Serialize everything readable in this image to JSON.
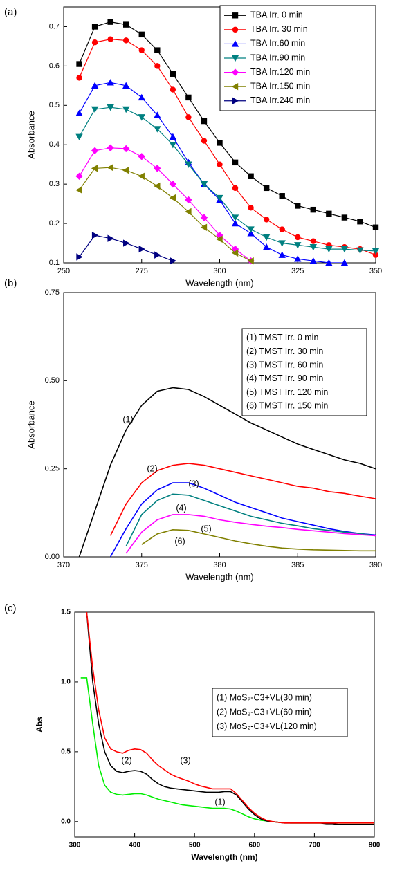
{
  "chart_data": [
    {
      "type": "line",
      "label": "(a)",
      "x_label": "Wavelength (nm)",
      "y_label": "Absorbance",
      "xlim": [
        250,
        350
      ],
      "xticks": [
        250,
        275,
        300,
        325,
        350
      ],
      "ylim": [
        0.1,
        0.75
      ],
      "yticks": [
        0.1,
        0.2,
        0.3,
        0.4,
        0.5,
        0.6,
        0.7
      ],
      "grid": false,
      "legend": "upper right",
      "x": [
        255,
        260,
        265,
        270,
        275,
        280,
        285,
        290,
        295,
        300,
        305,
        310,
        315,
        320,
        325,
        330,
        335,
        340,
        345,
        350
      ],
      "series": [
        {
          "name": "TBA Irr. 0 min",
          "color": "#000000",
          "marker": "square",
          "values": [
            0.605,
            0.7,
            0.712,
            0.705,
            0.68,
            0.64,
            0.58,
            0.52,
            0.46,
            0.405,
            0.355,
            0.32,
            0.29,
            0.27,
            0.245,
            0.235,
            0.225,
            0.215,
            0.205,
            0.19
          ]
        },
        {
          "name": "TBA Irr. 30 min",
          "color": "#ff0000",
          "marker": "circle",
          "values": [
            0.57,
            0.66,
            0.668,
            0.665,
            0.64,
            0.6,
            0.54,
            0.47,
            0.41,
            0.35,
            0.29,
            0.24,
            0.21,
            0.185,
            0.165,
            0.155,
            0.145,
            0.14,
            0.135,
            0.12
          ]
        },
        {
          "name": "TBA Irr.60 min",
          "color": "#0000ff",
          "marker": "triangle-up",
          "values": [
            0.48,
            0.55,
            0.558,
            0.55,
            0.52,
            0.475,
            0.42,
            0.355,
            0.3,
            0.26,
            0.2,
            0.175,
            0.14,
            0.12,
            0.11,
            0.105,
            0.1,
            0.1,
            null,
            null
          ]
        },
        {
          "name": "TBA Irr.90 min",
          "color": "#008080",
          "marker": "triangle-down",
          "values": [
            0.42,
            0.49,
            0.495,
            0.49,
            0.47,
            0.44,
            0.4,
            0.35,
            0.3,
            0.265,
            0.215,
            0.185,
            0.165,
            0.15,
            0.145,
            0.14,
            0.135,
            0.135,
            0.132,
            0.13
          ]
        },
        {
          "name": "TBA Irr.120 min",
          "color": "#ff00ff",
          "marker": "diamond",
          "values": [
            0.32,
            0.385,
            0.392,
            0.39,
            0.37,
            0.34,
            0.3,
            0.26,
            0.215,
            0.17,
            0.135,
            0.105,
            null,
            null,
            null,
            null,
            null,
            null,
            null,
            null
          ]
        },
        {
          "name": "TBA Irr.150 min",
          "color": "#808000",
          "marker": "triangle-left",
          "values": [
            0.285,
            0.34,
            0.342,
            0.335,
            0.32,
            0.295,
            0.265,
            0.23,
            0.19,
            0.16,
            0.125,
            0.105,
            null,
            null,
            null,
            null,
            null,
            null,
            null,
            null
          ]
        },
        {
          "name": "TBA Irr.240 min",
          "color": "#000080",
          "marker": "triangle-right",
          "values": [
            0.115,
            0.17,
            0.162,
            0.15,
            0.135,
            0.12,
            0.105,
            null,
            null,
            null,
            null,
            null,
            null,
            null,
            null,
            null,
            null,
            null,
            null,
            null
          ]
        }
      ]
    },
    {
      "type": "line",
      "label": "(b)",
      "x_label": "Wavelength (nm)",
      "y_label": "Absorbance",
      "xlim": [
        370,
        390
      ],
      "xticks": [
        370,
        375,
        380,
        385,
        390
      ],
      "ylim": [
        0,
        0.75
      ],
      "yticks": [
        {
          "value": 0,
          "label": "0.00"
        },
        {
          "value": 0.25,
          "label": "0.25"
        },
        {
          "value": 0.5,
          "label": "0.50"
        },
        {
          "value": 0.75,
          "label": "0.75"
        }
      ],
      "grid": false,
      "legend": "upper right",
      "annotations": [
        "(1)",
        "(2)",
        "(3)",
        "(4)",
        "(5)",
        "(6)"
      ],
      "x": [
        371,
        372,
        373,
        374,
        375,
        376,
        377,
        378,
        379,
        380,
        381,
        382,
        383,
        384,
        385,
        386,
        387,
        388,
        389,
        390
      ],
      "series": [
        {
          "name": "(1) TMST Irr. 0 min",
          "color": "#000000",
          "values": [
            0,
            0.13,
            0.26,
            0.36,
            0.43,
            0.47,
            0.48,
            0.475,
            0.455,
            0.43,
            0.405,
            0.38,
            0.36,
            0.34,
            0.32,
            0.305,
            0.29,
            0.275,
            0.265,
            0.25
          ]
        },
        {
          "name": "(2) TMST Irr. 30 min",
          "color": "#ff0000",
          "values": [
            null,
            null,
            0.06,
            0.15,
            0.21,
            0.245,
            0.26,
            0.265,
            0.26,
            0.25,
            0.24,
            0.23,
            0.22,
            0.21,
            0.2,
            0.195,
            0.185,
            0.18,
            0.172,
            0.165
          ]
        },
        {
          "name": "(3) TMST Irr. 60 min",
          "color": "#0000ff",
          "values": [
            null,
            null,
            0,
            0.08,
            0.15,
            0.19,
            0.21,
            0.21,
            0.195,
            0.175,
            0.155,
            0.14,
            0.125,
            0.11,
            0.1,
            0.09,
            0.08,
            0.072,
            0.066,
            0.062
          ]
        },
        {
          "name": "(4) TMST Irr. 90 min",
          "color": "#008080",
          "values": [
            null,
            null,
            null,
            0.03,
            0.12,
            0.16,
            0.178,
            0.175,
            0.16,
            0.145,
            0.13,
            0.115,
            0.105,
            0.095,
            0.088,
            0.08,
            0.075,
            0.07,
            0.066,
            0.06
          ]
        },
        {
          "name": "(5) TMST Irr. 120 min",
          "color": "#ff00ff",
          "values": [
            null,
            null,
            null,
            0.01,
            0.07,
            0.105,
            0.12,
            0.12,
            0.115,
            0.105,
            0.098,
            0.092,
            0.087,
            0.083,
            0.078,
            0.074,
            0.07,
            0.066,
            0.063,
            0.06
          ]
        },
        {
          "name": "(6) TMST Irr. 150 min",
          "color": "#808000",
          "values": [
            null,
            null,
            null,
            null,
            0.035,
            0.065,
            0.077,
            0.075,
            0.065,
            0.055,
            0.045,
            0.037,
            0.03,
            0.025,
            0.022,
            0.02,
            0.019,
            0.018,
            0.017,
            0.017
          ]
        }
      ]
    },
    {
      "type": "line",
      "label": "(c)",
      "x_label": "Wavelength (nm)",
      "y_label": "Abs",
      "xlim": [
        300,
        800
      ],
      "xticks": [
        300,
        400,
        500,
        600,
        700,
        800
      ],
      "ylim": [
        -0.11,
        1.5
      ],
      "yticks": [
        {
          "value": 0,
          "label": "0.0"
        },
        {
          "value": 0.5,
          "label": "0.5"
        },
        {
          "value": 1,
          "label": "1.0"
        },
        {
          "value": 1.5,
          "label": "1.5"
        }
      ],
      "grid": false,
      "legend": "center right",
      "annotations": [
        "(2)",
        "(3)",
        "(1)"
      ],
      "x": [
        310,
        320,
        330,
        340,
        350,
        360,
        370,
        380,
        390,
        400,
        410,
        420,
        430,
        440,
        450,
        460,
        470,
        480,
        490,
        500,
        510,
        520,
        530,
        540,
        550,
        560,
        570,
        580,
        590,
        600,
        610,
        620,
        630,
        640,
        650,
        660,
        670,
        680,
        690,
        700,
        710,
        720,
        730,
        740,
        750,
        760,
        770,
        780,
        790,
        800
      ],
      "series": [
        {
          "name": "(1) MoS₂-C3+VL(30 min)",
          "color": "#00ee00",
          "values": [
            1.03,
            1.03,
            0.7,
            0.4,
            0.26,
            0.21,
            0.195,
            0.19,
            0.195,
            0.2,
            0.2,
            0.19,
            0.175,
            0.16,
            0.15,
            0.14,
            0.13,
            0.12,
            0.115,
            0.11,
            0.105,
            0.1,
            0.095,
            0.095,
            0.095,
            0.09,
            0.075,
            0.055,
            0.035,
            0.02,
            0.01,
            0.005,
            0,
            -0.005,
            -0.005,
            -0.01,
            -0.01,
            -0.01,
            -0.01,
            -0.01,
            -0.01,
            -0.01,
            -0.01,
            -0.01,
            -0.01,
            -0.01,
            -0.01,
            -0.01,
            -0.01,
            -0.01
          ]
        },
        {
          "name": "(2) MoS₂-C3+VL(60 min)",
          "color": "#000000",
          "values": [
            null,
            1.5,
            1.0,
            0.7,
            0.5,
            0.4,
            0.36,
            0.35,
            0.36,
            0.365,
            0.36,
            0.34,
            0.3,
            0.27,
            0.25,
            0.24,
            0.235,
            0.23,
            0.225,
            0.22,
            0.215,
            0.21,
            0.21,
            0.21,
            0.215,
            0.215,
            0.19,
            0.14,
            0.09,
            0.05,
            0.02,
            0.005,
            0,
            -0.005,
            -0.01,
            -0.01,
            -0.01,
            -0.01,
            -0.01,
            -0.01,
            -0.01,
            -0.015,
            -0.015,
            -0.02,
            -0.02,
            -0.02,
            -0.02,
            -0.02,
            -0.02,
            -0.02
          ]
        },
        {
          "name": "(3) MoS₂-C3+VL(120 min)",
          "color": "#ff0000",
          "values": [
            null,
            1.5,
            1.1,
            0.8,
            0.6,
            0.52,
            0.5,
            0.49,
            0.51,
            0.52,
            0.515,
            0.49,
            0.44,
            0.4,
            0.37,
            0.34,
            0.32,
            0.305,
            0.29,
            0.27,
            0.255,
            0.245,
            0.235,
            0.235,
            0.235,
            0.235,
            0.2,
            0.15,
            0.1,
            0.06,
            0.03,
            0.01,
            0,
            -0.005,
            -0.01,
            -0.01,
            -0.01,
            -0.01,
            -0.01,
            -0.01,
            -0.01,
            -0.01,
            -0.01,
            -0.01,
            -0.01,
            -0.01,
            -0.01,
            -0.01,
            -0.01,
            -0.01
          ]
        }
      ]
    }
  ]
}
